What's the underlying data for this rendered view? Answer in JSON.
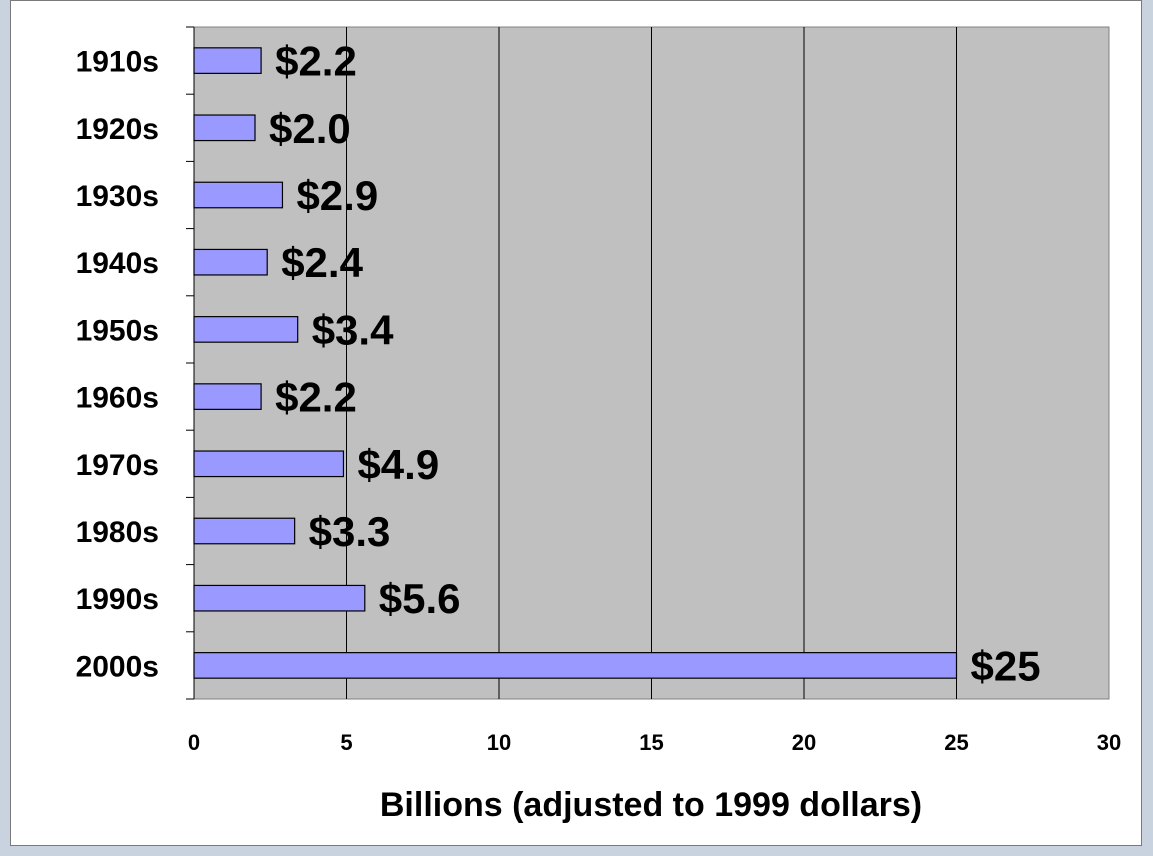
{
  "chart_data": {
    "type": "bar",
    "orientation": "horizontal",
    "categories": [
      "1910s",
      "1920s",
      "1930s",
      "1940s",
      "1950s",
      "1960s",
      "1970s",
      "1980s",
      "1990s",
      "2000s"
    ],
    "values": [
      2.2,
      2.0,
      2.9,
      2.4,
      3.4,
      2.2,
      4.9,
      3.3,
      5.6,
      25
    ],
    "data_labels": [
      "$2.2",
      "$2.0",
      "$2.9",
      "$2.4",
      "$3.4",
      "$2.2",
      "$4.9",
      "$3.3",
      "$5.6",
      "$25"
    ],
    "title": "",
    "xlabel": "Billions (adjusted to 1999 dollars)",
    "ylabel": "",
    "xlim": [
      0,
      30
    ],
    "xticks": [
      0,
      5,
      10,
      15,
      20,
      25,
      30
    ],
    "grid": "vertical",
    "legend": "none",
    "colors": {
      "bar_fill": "#9999ff",
      "bar_stroke": "#000000",
      "plot_background": "#c0c0c0",
      "gridline": "#000000"
    }
  }
}
